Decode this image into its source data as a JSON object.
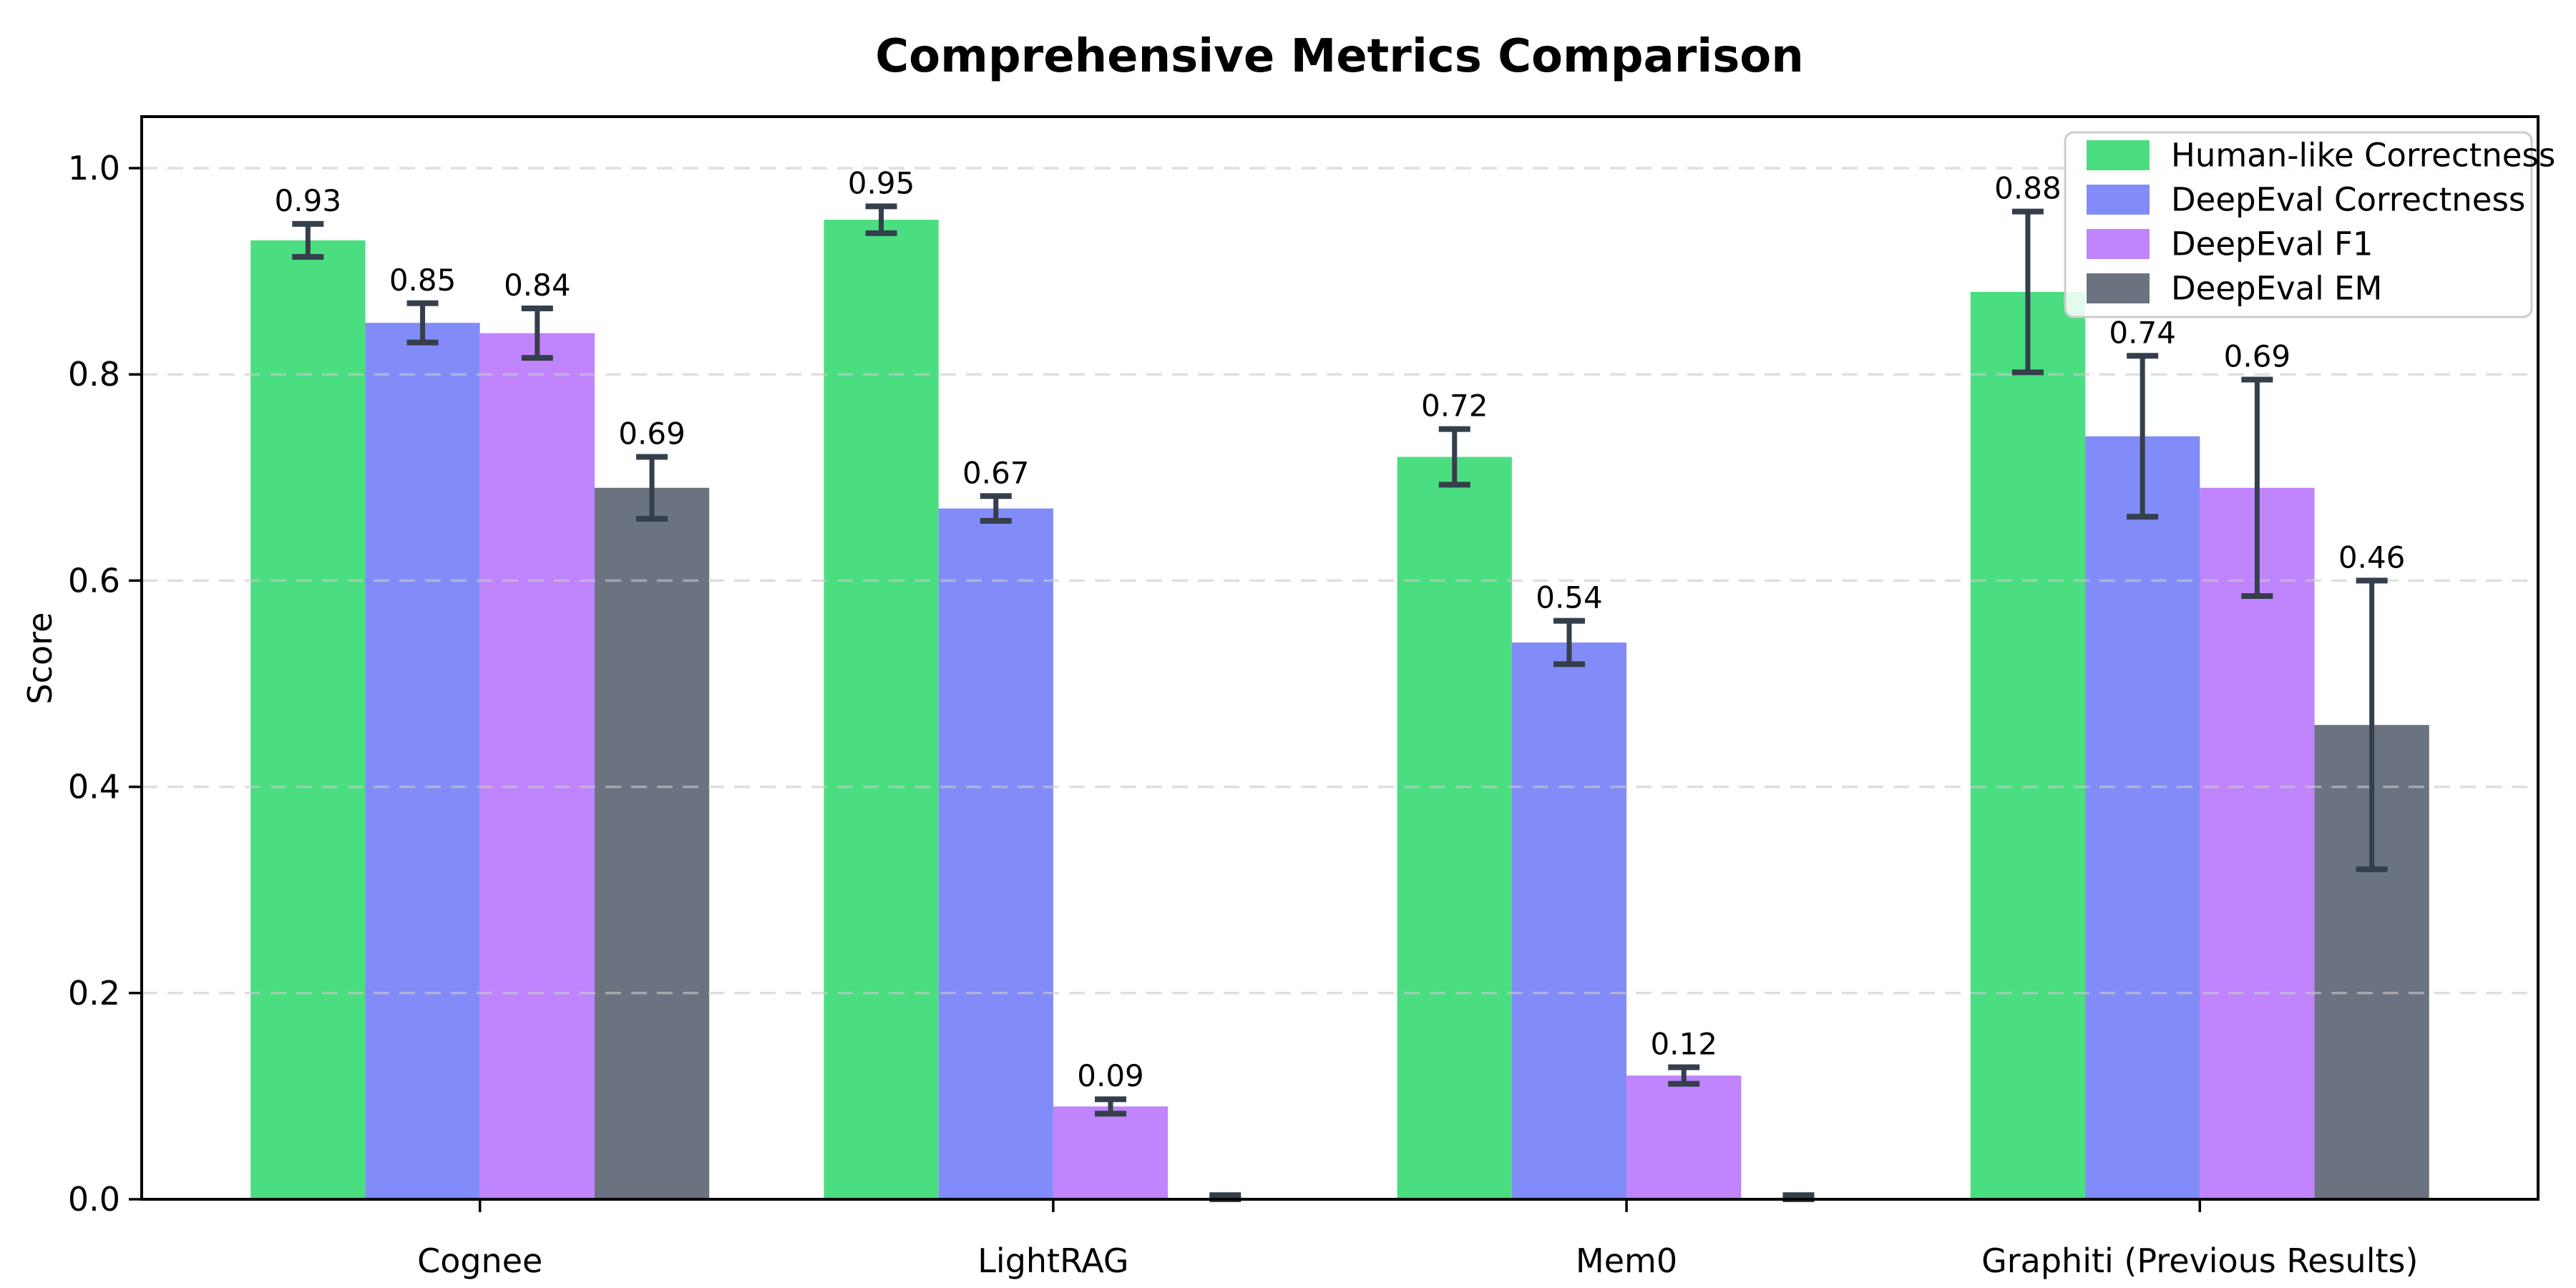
{
  "chart_data": {
    "type": "bar",
    "title": "Comprehensive Metrics Comparison",
    "ylabel": "Score",
    "xlabel": "",
    "categories": [
      "Cognee",
      "LightRAG",
      "Mem0",
      "Graphiti (Previous Results)"
    ],
    "series": [
      {
        "name": "Human-like Correctness",
        "color": "#4ade80",
        "values": [
          0.93,
          0.95,
          0.72,
          0.88
        ],
        "errors": [
          0.016,
          0.013,
          0.027,
          0.078
        ],
        "bar_labels": [
          "0.93",
          "0.95",
          "0.72",
          "0.88"
        ]
      },
      {
        "name": "DeepEval Correctness",
        "color": "#818cf8",
        "values": [
          0.85,
          0.67,
          0.54,
          0.74
        ],
        "errors": [
          0.019,
          0.012,
          0.021,
          0.078
        ],
        "bar_labels": [
          "0.85",
          "0.67",
          "0.54",
          "0.74"
        ]
      },
      {
        "name": "DeepEval F1",
        "color": "#c084fc",
        "values": [
          0.84,
          0.09,
          0.12,
          0.69
        ],
        "errors": [
          0.024,
          0.007,
          0.008,
          0.105
        ],
        "bar_labels": [
          "0.84",
          "0.09",
          "0.12",
          "0.69"
        ]
      },
      {
        "name": "DeepEval EM",
        "color": "#6b7280",
        "values": [
          0.69,
          0.0,
          0.0,
          0.46
        ],
        "errors": [
          0.03,
          0.004,
          0.004,
          0.14
        ],
        "bar_labels": [
          "0.69",
          null,
          null,
          "0.46"
        ]
      }
    ],
    "ylim": [
      0,
      1.05
    ],
    "y_tick_values": [
      0.0,
      0.2,
      0.4,
      0.6,
      0.8,
      1.0
    ],
    "y_tick_labels": [
      "0.0",
      "0.2",
      "0.4",
      "0.6",
      "0.8",
      "1.0"
    ],
    "grid": {
      "axis": "y",
      "style": "dashed",
      "color": "#c9c9c9"
    },
    "legend": {
      "position": "upper right",
      "entries": [
        "Human-like Correctness",
        "DeepEval Correctness",
        "DeepEval F1",
        "DeepEval EM"
      ]
    },
    "colors": {
      "error_bar": "#353f4b",
      "axis": "#000000",
      "background": "#ffffff"
    }
  }
}
